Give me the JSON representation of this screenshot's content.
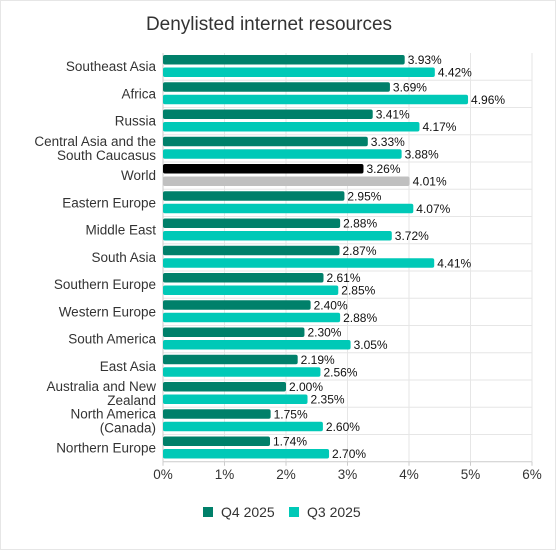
{
  "chart_data": {
    "type": "bar",
    "orientation": "horizontal",
    "title": "Denylisted internet resources",
    "xlabel": "",
    "ylabel": "",
    "xlim": [
      0,
      6
    ],
    "x_ticks": [
      "0%",
      "1%",
      "2%",
      "3%",
      "4%",
      "5%",
      "6%"
    ],
    "grid": true,
    "legend_position": "bottom",
    "categories": [
      [
        "Southeast Asia"
      ],
      [
        "Africa"
      ],
      [
        "Russia"
      ],
      [
        "Central Asia and the",
        "South Caucasus"
      ],
      [
        "World"
      ],
      [
        "Eastern Europe"
      ],
      [
        "Middle East"
      ],
      [
        "South Asia"
      ],
      [
        "Southern Europe"
      ],
      [
        "Western Europe"
      ],
      [
        "South America"
      ],
      [
        "East Asia"
      ],
      [
        "Australia and New",
        "Zealand"
      ],
      [
        "North America",
        "(Canada)"
      ],
      [
        "Northern Europe"
      ]
    ],
    "series": [
      {
        "name": "Q4 2025",
        "color": "#00806a",
        "highlight_color": "#000000",
        "values": [
          3.93,
          3.69,
          3.41,
          3.33,
          3.26,
          2.95,
          2.88,
          2.87,
          2.61,
          2.4,
          2.3,
          2.19,
          2.0,
          1.75,
          1.74
        ],
        "labels": [
          "3.93%",
          "3.69%",
          "3.41%",
          "3.33%",
          "3.26%",
          "2.95%",
          "2.88%",
          "2.87%",
          "2.61%",
          "2.40%",
          "2.30%",
          "2.19%",
          "2.00%",
          "1.75%",
          "1.74%"
        ]
      },
      {
        "name": "Q3 2025",
        "color": "#00c9b7",
        "highlight_color": "#c0c0c0",
        "values": [
          4.42,
          4.96,
          4.17,
          3.88,
          4.01,
          4.07,
          3.72,
          4.41,
          2.85,
          2.88,
          3.05,
          2.56,
          2.35,
          2.6,
          2.7
        ],
        "labels": [
          "4.42%",
          "4.96%",
          "4.17%",
          "3.88%",
          "4.01%",
          "4.07%",
          "3.72%",
          "4.41%",
          "2.85%",
          "2.88%",
          "3.05%",
          "2.56%",
          "2.35%",
          "2.60%",
          "2.70%"
        ]
      }
    ],
    "highlight_category": "World"
  }
}
